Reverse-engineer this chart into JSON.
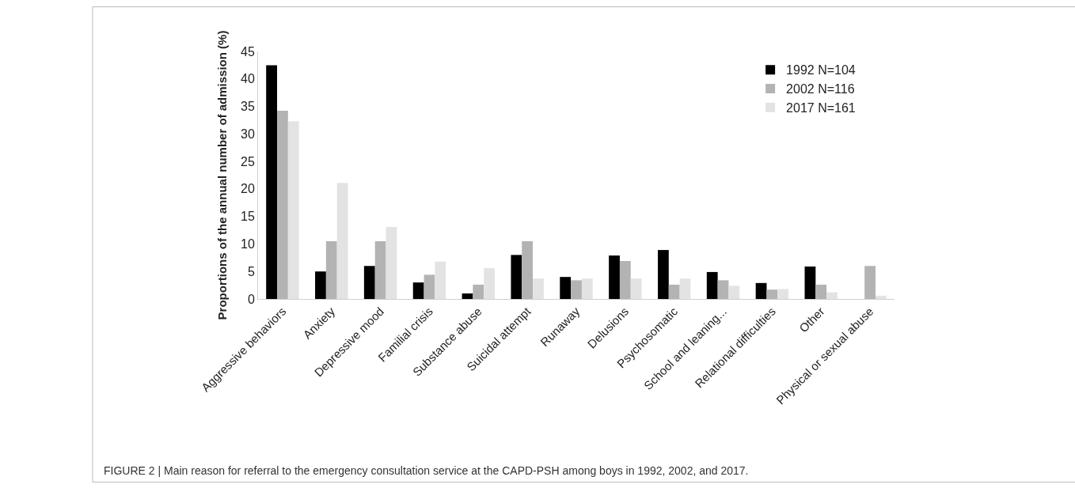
{
  "chart_data": {
    "type": "bar",
    "ylabel": "Proportions of the annual number of admission (%)",
    "categories": [
      "Aggressive behaviors",
      "Anxiety",
      "Depressive mood",
      "Familial crisis",
      "Substance abuse",
      "Suicidal attempt",
      "Runaway",
      "Delusions",
      "Psychosomatic",
      "School and leaning...",
      "Relational difficulties",
      "Other",
      "Physical or sexual abuse"
    ],
    "series": [
      {
        "name": "1992 N=104",
        "color": "#000000",
        "values": [
          42.5,
          5,
          6,
          3,
          1,
          8,
          4,
          7.9,
          8.9,
          4.9,
          2.9,
          5.9,
          0
        ]
      },
      {
        "name": "2002 N=116",
        "color": "#b3b3b3",
        "values": [
          34.2,
          10.5,
          10.5,
          4.4,
          2.6,
          10.5,
          3.4,
          6.9,
          2.6,
          3.4,
          1.7,
          2.6,
          6.0
        ]
      },
      {
        "name": "2017 N=161",
        "color": "#e3e3e3",
        "values": [
          32.3,
          21.1,
          13.1,
          6.8,
          5.6,
          3.7,
          3.7,
          3.7,
          3.7,
          2.4,
          1.8,
          1.2,
          0.6
        ]
      }
    ],
    "ylim": [
      0,
      45
    ],
    "yticks": [
      0,
      5,
      10,
      15,
      20,
      25,
      30,
      35,
      40,
      45
    ],
    "grid": false,
    "legend": "top right",
    "annotations": [
      "FIGURE 2 | Main reason for referral to the emergency consultation service at the CAPD-PSH among boys in 1992, 2002, and 2017."
    ]
  }
}
